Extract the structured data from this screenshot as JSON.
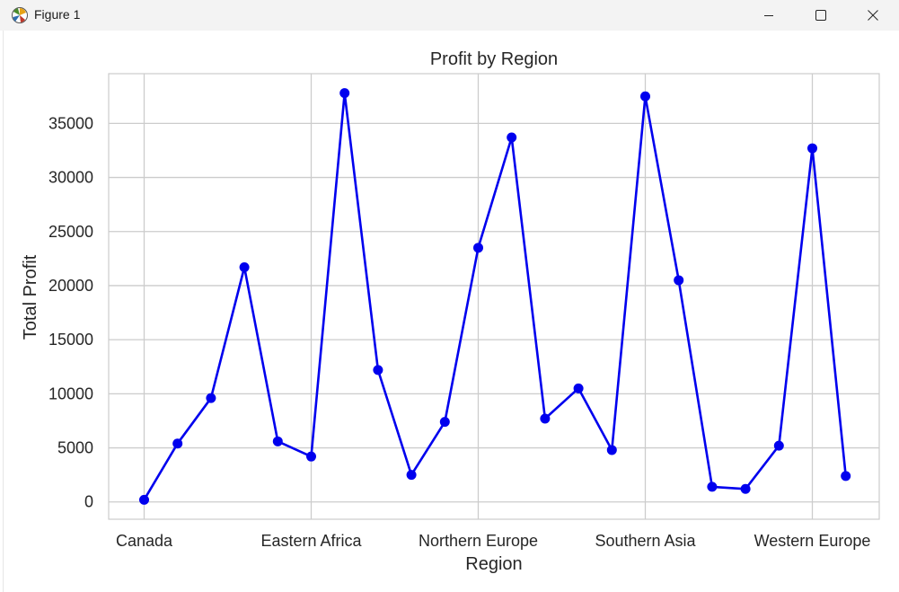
{
  "window": {
    "title": "Figure 1",
    "icon": "matplotlib-icon",
    "controls": [
      "minimize-icon",
      "maximize-icon",
      "close-icon"
    ]
  },
  "chart_data": {
    "type": "line",
    "title": "Profit by Region",
    "xlabel": "Region",
    "ylabel": "Total Profit",
    "x_tick_labels": [
      "Canada",
      "Eastern Africa",
      "Northern Europe",
      "Southern Asia",
      "Western Europe"
    ],
    "y_ticks": [
      0,
      5000,
      10000,
      15000,
      20000,
      25000,
      30000,
      35000
    ],
    "ylim": [
      -1600,
      39600
    ],
    "grid": true,
    "marker": "circle",
    "series": [
      {
        "color": "#0000ee",
        "values": [
          200,
          5400,
          9600,
          21700,
          5600,
          4200,
          37800,
          12200,
          2500,
          7400,
          23500,
          33700,
          7700,
          10500,
          4800,
          37500,
          20500,
          1400,
          1200,
          5200,
          32700,
          2400
        ]
      }
    ]
  }
}
